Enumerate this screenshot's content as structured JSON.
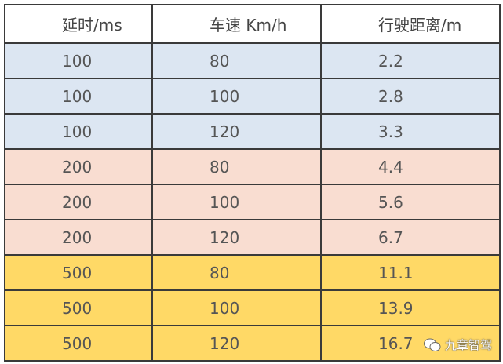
{
  "table": {
    "header": [
      "延时/ms",
      "车速 Km/h",
      "行驶距离/m"
    ],
    "rows": [
      [
        100,
        80,
        2.2
      ],
      [
        100,
        100,
        2.8
      ],
      [
        100,
        120,
        3.3
      ],
      [
        200,
        80,
        4.4
      ],
      [
        200,
        100,
        5.6
      ],
      [
        200,
        120,
        6.7
      ],
      [
        500,
        80,
        11.1
      ],
      [
        500,
        100,
        13.9
      ],
      [
        500,
        120,
        16.7
      ]
    ]
  },
  "watermark": "九章智驾"
}
